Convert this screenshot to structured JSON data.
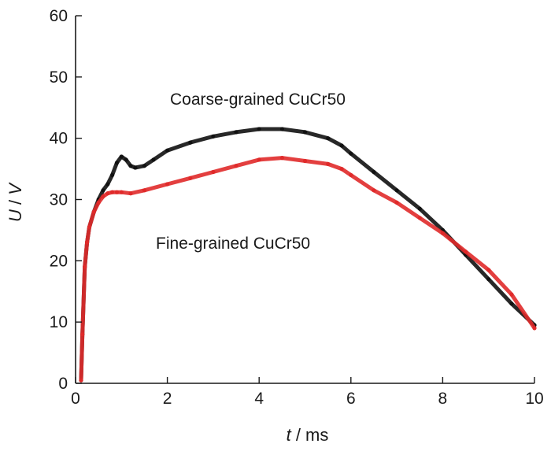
{
  "chart_data": {
    "type": "scatter",
    "xlabel_var": "t",
    "xlabel_unit": " / ms",
    "ylabel_var": "U",
    "ylabel_sep": " / ",
    "ylabel_unit": "V",
    "xlim": [
      0,
      10
    ],
    "ylim": [
      0,
      60
    ],
    "xticks": [
      "0",
      "2",
      "4",
      "6",
      "8",
      "10"
    ],
    "yticks": [
      "0",
      "10",
      "20",
      "30",
      "40",
      "50",
      "60"
    ],
    "grid": false,
    "annotations": [
      {
        "text": "Coarse-grained CuCr50",
        "series": "coarse"
      },
      {
        "text": "Fine-grained CuCr50",
        "series": "fine"
      }
    ],
    "series": [
      {
        "key": "coarse",
        "color": "#111111",
        "x": [
          0.12,
          0.15,
          0.2,
          0.25,
          0.3,
          0.4,
          0.5,
          0.6,
          0.7,
          0.8,
          0.9,
          1.0,
          1.1,
          1.2,
          1.3,
          1.5,
          1.7,
          2.0,
          2.5,
          3.0,
          3.5,
          4.0,
          4.5,
          5.0,
          5.5,
          5.8,
          6.0,
          6.5,
          7.0,
          7.5,
          8.0,
          8.5,
          9.0,
          9.5,
          10.0
        ],
        "y": [
          0.5,
          8,
          19,
          23,
          25.5,
          28,
          30,
          31.5,
          32.5,
          34,
          36,
          37,
          36.5,
          35.5,
          35.2,
          35.5,
          36.5,
          38,
          39.3,
          40.3,
          41,
          41.5,
          41.5,
          41,
          40,
          38.8,
          37.5,
          34.5,
          31.5,
          28.5,
          25,
          21,
          17,
          13,
          9.5
        ]
      },
      {
        "key": "fine",
        "color": "#e02a2a",
        "x": [
          0.12,
          0.15,
          0.2,
          0.25,
          0.3,
          0.4,
          0.5,
          0.6,
          0.7,
          0.8,
          0.9,
          1.0,
          1.2,
          1.5,
          2.0,
          2.5,
          3.0,
          3.5,
          4.0,
          4.5,
          5.0,
          5.5,
          5.8,
          6.0,
          6.5,
          7.0,
          7.5,
          8.0,
          8.5,
          9.0,
          9.5,
          10.0
        ],
        "y": [
          0.5,
          8,
          19,
          23,
          25.5,
          28,
          29.5,
          30.5,
          31,
          31.2,
          31.2,
          31.2,
          31,
          31.5,
          32.5,
          33.5,
          34.5,
          35.5,
          36.5,
          36.8,
          36.3,
          35.8,
          35,
          34,
          31.5,
          29.5,
          27,
          24.5,
          21.5,
          18.5,
          14.5,
          9
        ]
      }
    ]
  }
}
